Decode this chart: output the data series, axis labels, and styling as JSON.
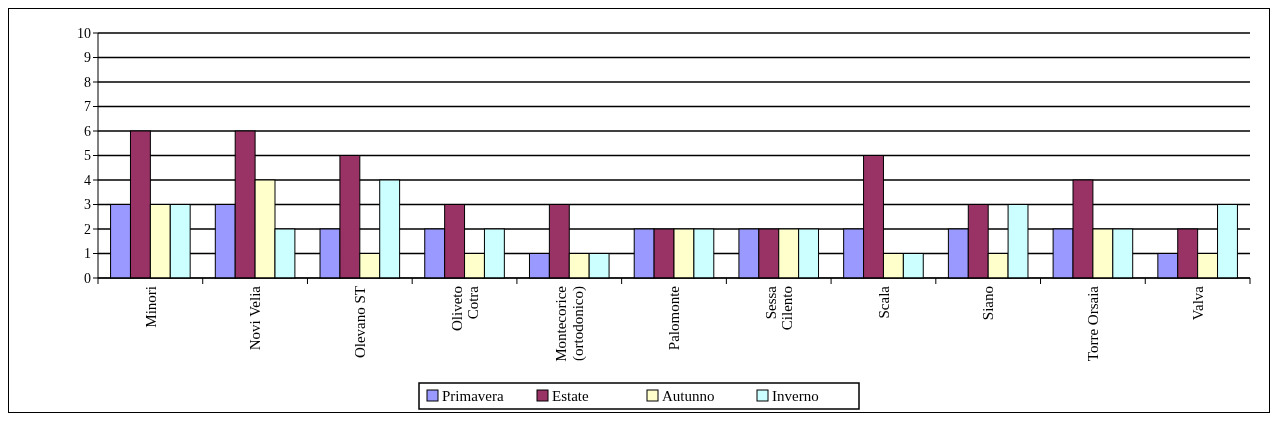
{
  "chart_data": {
    "type": "bar",
    "categories": [
      "Minori",
      "Novi Velia",
      "Olevano ST",
      "Oliveto\nCotra",
      "Montecorice\n(ortodonico)",
      "Palomonte",
      "Sessa\nCilento",
      "Scala",
      "Siano",
      "Torre Orsaia",
      "Valva"
    ],
    "series": [
      {
        "name": "Primavera",
        "color": "#9999ff",
        "values": [
          3,
          3,
          2,
          2,
          1,
          2,
          2,
          2,
          2,
          2,
          1
        ]
      },
      {
        "name": "Estate",
        "color": "#993366",
        "values": [
          6,
          6,
          5,
          3,
          3,
          2,
          2,
          5,
          3,
          4,
          2
        ]
      },
      {
        "name": "Autunno",
        "color": "#ffffcc",
        "values": [
          3,
          4,
          1,
          1,
          1,
          2,
          2,
          1,
          1,
          2,
          1
        ]
      },
      {
        "name": "Inverno",
        "color": "#ccffff",
        "values": [
          3,
          2,
          4,
          2,
          1,
          2,
          2,
          1,
          3,
          2,
          3
        ]
      }
    ],
    "ylim": [
      0,
      10
    ],
    "yticks": [
      0,
      1,
      2,
      3,
      4,
      5,
      6,
      7,
      8,
      9,
      10
    ],
    "grid": "y",
    "legend": "bottom"
  }
}
